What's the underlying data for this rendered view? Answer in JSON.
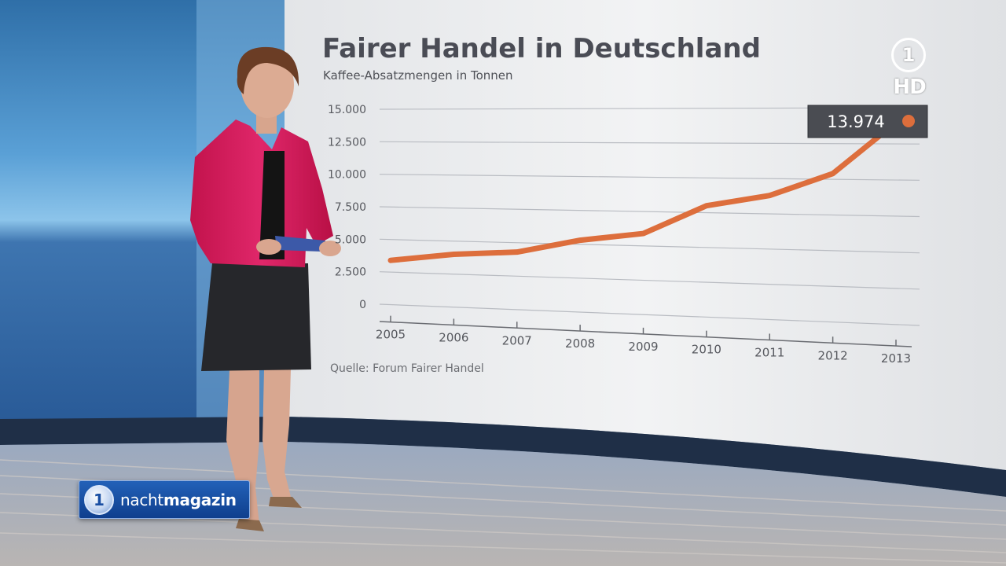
{
  "broadcast": {
    "show_logo": "nachtmagazin",
    "show_logo_prefix": "nacht",
    "show_logo_suffix": "magazin",
    "channel_badge": "HD",
    "channel_number": "1"
  },
  "colors": {
    "line": "#dd6e3c",
    "callout_bg": "#4a4c52",
    "title": "#4a4c55",
    "axis_text": "#56585e",
    "grid": "#b9bcc2"
  },
  "chart_data": {
    "type": "line",
    "title": "Fairer Handel in Deutschland",
    "subtitle": "Kaffee-Absatzmengen in Tonnen",
    "source": "Quelle: Forum Fairer Handel",
    "x": [
      "2005",
      "2006",
      "2007",
      "2008",
      "2009",
      "2010",
      "2011",
      "2012",
      "2013"
    ],
    "ylim": [
      0,
      15000
    ],
    "yticks": [
      "0",
      "2.500",
      "5.000",
      "7.500",
      "10.000",
      "12.500",
      "15.000"
    ],
    "series": [
      {
        "values": [
          3400,
          4000,
          4300,
          5300,
          5900,
          8000,
          8800,
          10400,
          13974
        ]
      }
    ],
    "annotation": {
      "label": "13.974",
      "value": 13974,
      "x": "2013"
    },
    "grid": true,
    "legend": "none"
  }
}
